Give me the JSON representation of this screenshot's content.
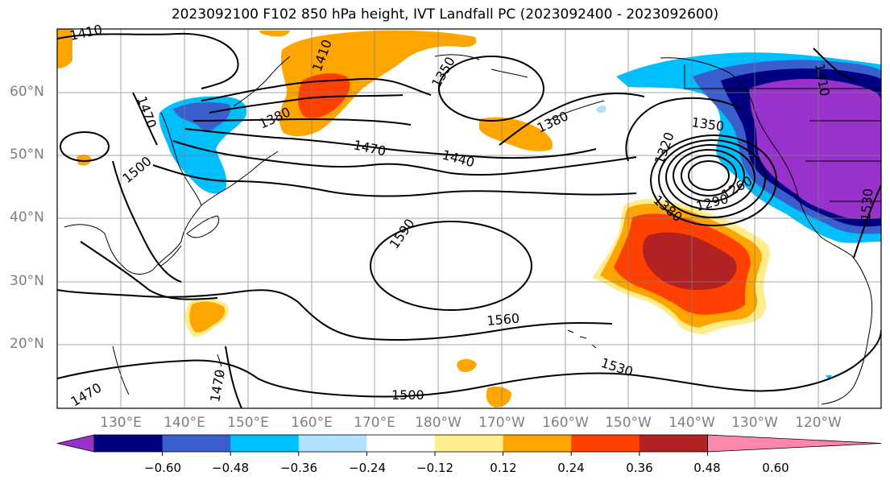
{
  "title": "2023092100 F102 850 hPa height, IVT Landfall PC (2023092400 - 2023092600)",
  "lat_labels": [
    "60°N",
    "50°N",
    "40°N",
    "30°N",
    "20°N"
  ],
  "lon_labels": [
    "130°E",
    "140°E",
    "150°E",
    "160°E",
    "170°E",
    "180°W",
    "170°W",
    "160°W",
    "150°W",
    "140°W",
    "130°W",
    "120°W"
  ],
  "contour_labels": [
    "1410",
    "1410",
    "1350",
    "1380",
    "1380",
    "1470",
    "1470",
    "1440",
    "1350",
    "1320",
    "1500",
    "1590",
    "1380",
    "1290",
    "1260",
    "1560",
    "1530",
    "1500",
    "1470",
    "1470",
    "1410",
    "1530"
  ],
  "colorbar": {
    "tick_labels": [
      "−0.60",
      "−0.48",
      "−0.36",
      "−0.24",
      "−0.12",
      "0.12",
      "0.24",
      "0.36",
      "0.48",
      "0.60"
    ],
    "colors": [
      "#9932cc",
      "#000080",
      "#3a5fcd",
      "#00bfff",
      "#b0e2ff",
      "#ffffff",
      "#ffec8b",
      "#ffa500",
      "#ff4000",
      "#b22222",
      "#ff88aa"
    ]
  }
}
